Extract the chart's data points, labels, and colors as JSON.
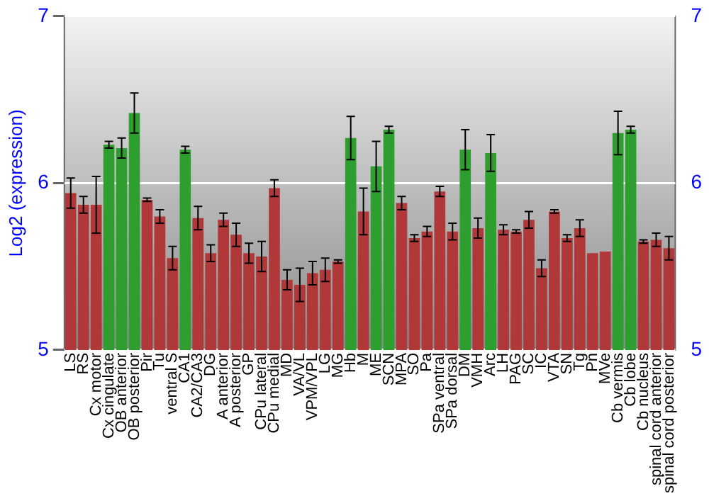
{
  "chart_data": {
    "type": "bar",
    "ylabel": "Log2 (expression)",
    "categories": [
      "LS",
      "RS",
      "Cx motor",
      "Cx cingulate",
      "OB anterior",
      "OB posterior",
      "Pir",
      "Tu",
      "ventral S",
      "CA1",
      "CA2/CA3",
      "DG",
      "A anterior",
      "A posterior",
      "GP",
      "CPu lateral",
      "CPu medial",
      "MD",
      "VA/VL",
      "VPM/VPL",
      "LG",
      "MG",
      "Hb",
      "M",
      "ME",
      "SCN",
      "MPA",
      "SO",
      "Pa",
      "SPa ventral",
      "SPa dorsal",
      "DM",
      "VMH",
      "Arc",
      "LH",
      "PAG",
      "SC",
      "IC",
      "VTA",
      "SN",
      "Tg",
      "Pn",
      "MVe",
      "Cb vermis",
      "Cb lobe",
      "Cb nucleus",
      "spinal cord anterior",
      "spinal cord posterior"
    ],
    "values": [
      5.94,
      5.87,
      5.87,
      6.23,
      6.21,
      6.42,
      5.9,
      5.8,
      5.55,
      6.2,
      5.79,
      5.58,
      5.78,
      5.69,
      5.58,
      5.56,
      5.97,
      5.42,
      5.39,
      5.46,
      5.48,
      5.53,
      6.27,
      5.83,
      6.1,
      6.32,
      5.88,
      5.67,
      5.71,
      5.95,
      5.71,
      6.2,
      5.73,
      6.18,
      5.72,
      5.71,
      5.78,
      5.49,
      5.83,
      5.67,
      5.73,
      5.58,
      5.59,
      6.3,
      6.32,
      5.65,
      5.66,
      5.61
    ],
    "errors": [
      0.09,
      0.05,
      0.17,
      0.02,
      0.06,
      0.12,
      0.01,
      0.04,
      0.07,
      0.02,
      0.07,
      0.05,
      0.04,
      0.07,
      0.06,
      0.09,
      0.05,
      0.06,
      0.1,
      0.07,
      0.07,
      0.01,
      0.13,
      0.14,
      0.15,
      0.02,
      0.04,
      0.02,
      0.03,
      0.03,
      0.05,
      0.12,
      0.06,
      0.11,
      0.03,
      0.01,
      0.05,
      0.05,
      0.01,
      0.02,
      0.05,
      null,
      null,
      0.13,
      0.02,
      0.01,
      0.04,
      0.07
    ],
    "colors": [
      "#b03838",
      "#b03838",
      "#b03838",
      "#2e9e2e",
      "#2e9e2e",
      "#2e9e2e",
      "#b03838",
      "#b03838",
      "#b03838",
      "#2e9e2e",
      "#b03838",
      "#b03838",
      "#b03838",
      "#b03838",
      "#b03838",
      "#b03838",
      "#b03838",
      "#b03838",
      "#b03838",
      "#b03838",
      "#b03838",
      "#b03838",
      "#2e9e2e",
      "#b03838",
      "#2e9e2e",
      "#2e9e2e",
      "#b03838",
      "#b03838",
      "#b03838",
      "#b03838",
      "#b03838",
      "#2e9e2e",
      "#b03838",
      "#2e9e2e",
      "#b03838",
      "#b03838",
      "#b03838",
      "#b03838",
      "#b03838",
      "#b03838",
      "#b03838",
      "#b03838",
      "#b03838",
      "#2e9e2e",
      "#2e9e2e",
      "#b03838",
      "#b03838",
      "#b03838"
    ],
    "ylim": [
      5,
      7
    ],
    "yticks": [
      5,
      6,
      7
    ],
    "y2lim": [
      5,
      7
    ],
    "y2ticks": [
      5,
      6,
      7
    ],
    "grid": "y",
    "legend": false
  }
}
